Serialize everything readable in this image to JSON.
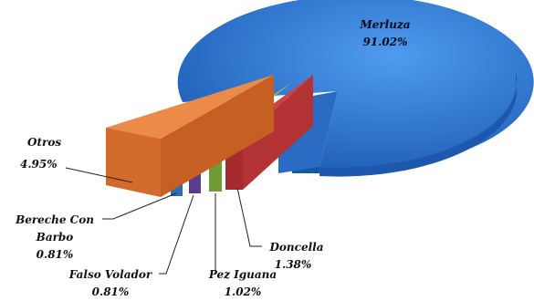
{
  "chart_data": {
    "type": "pie",
    "style": "3d-exploded",
    "title": "",
    "slices": [
      {
        "name": "Merluza",
        "percent_label": "91.02%",
        "value": 91.02,
        "color": "#2f77d2"
      },
      {
        "name": "Doncella",
        "percent_label": "1.38%",
        "value": 1.38,
        "color": "#c0393b"
      },
      {
        "name": "Pez Iguana",
        "percent_label": "1.02%",
        "value": 1.02,
        "color": "#86b34a"
      },
      {
        "name": "Falso Volador",
        "percent_label": "0.81%",
        "value": 0.81,
        "color": "#6a4ba0"
      },
      {
        "name": "Bereche Con Barbo",
        "name_lines": [
          "Bereche Con",
          "Barbo"
        ],
        "percent_label": "0.81%",
        "value": 0.81,
        "color": "#3a7fc9"
      },
      {
        "name": "Otros",
        "percent_label": "4.95%",
        "value": 4.95,
        "color": "#e07a3a"
      }
    ],
    "legend": "none",
    "data_labels": "leader-lines"
  }
}
